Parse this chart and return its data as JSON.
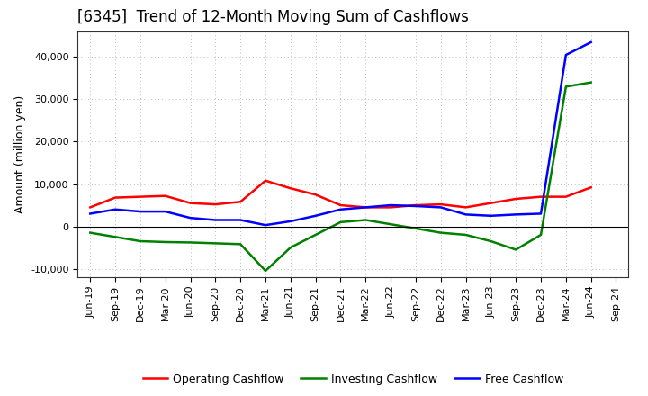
{
  "title": "[6345]  Trend of 12-Month Moving Sum of Cashflows",
  "ylabel": "Amount (million yen)",
  "ylim": [
    -12000,
    46000
  ],
  "yticks": [
    -10000,
    0,
    10000,
    20000,
    30000,
    40000
  ],
  "background_color": "#ffffff",
  "plot_bg_color": "#ffffff",
  "grid_color": "#bbbbbb",
  "labels": [
    "Jun-19",
    "Sep-19",
    "Dec-19",
    "Mar-20",
    "Jun-20",
    "Sep-20",
    "Dec-20",
    "Mar-21",
    "Jun-21",
    "Sep-21",
    "Dec-21",
    "Mar-22",
    "Jun-22",
    "Sep-22",
    "Dec-22",
    "Mar-23",
    "Jun-23",
    "Sep-23",
    "Dec-23",
    "Mar-24",
    "Jun-24",
    "Sep-24"
  ],
  "operating": [
    4500,
    6800,
    7000,
    7200,
    5500,
    5200,
    5800,
    10800,
    9000,
    7500,
    5000,
    4500,
    4500,
    5000,
    5200,
    4500,
    5500,
    6500,
    7000,
    7000,
    9200,
    null
  ],
  "investing": [
    -1500,
    -2500,
    -3500,
    -3700,
    -3800,
    -4000,
    -4200,
    -10500,
    -5000,
    -2000,
    1000,
    1500,
    500,
    -500,
    -1500,
    -2000,
    -3500,
    -5500,
    -2000,
    33000,
    34000,
    null
  ],
  "free": [
    3000,
    4000,
    3500,
    3500,
    2000,
    1500,
    1500,
    300,
    1200,
    2500,
    4000,
    4500,
    5000,
    4800,
    4500,
    2800,
    2500,
    2800,
    3000,
    40500,
    43500,
    null
  ],
  "operating_color": "#ff0000",
  "investing_color": "#008000",
  "free_color": "#0000ff",
  "line_width": 1.8,
  "legend_labels": [
    "Operating Cashflow",
    "Investing Cashflow",
    "Free Cashflow"
  ],
  "title_fontsize": 12,
  "ylabel_fontsize": 9,
  "tick_fontsize": 8,
  "legend_fontsize": 9
}
